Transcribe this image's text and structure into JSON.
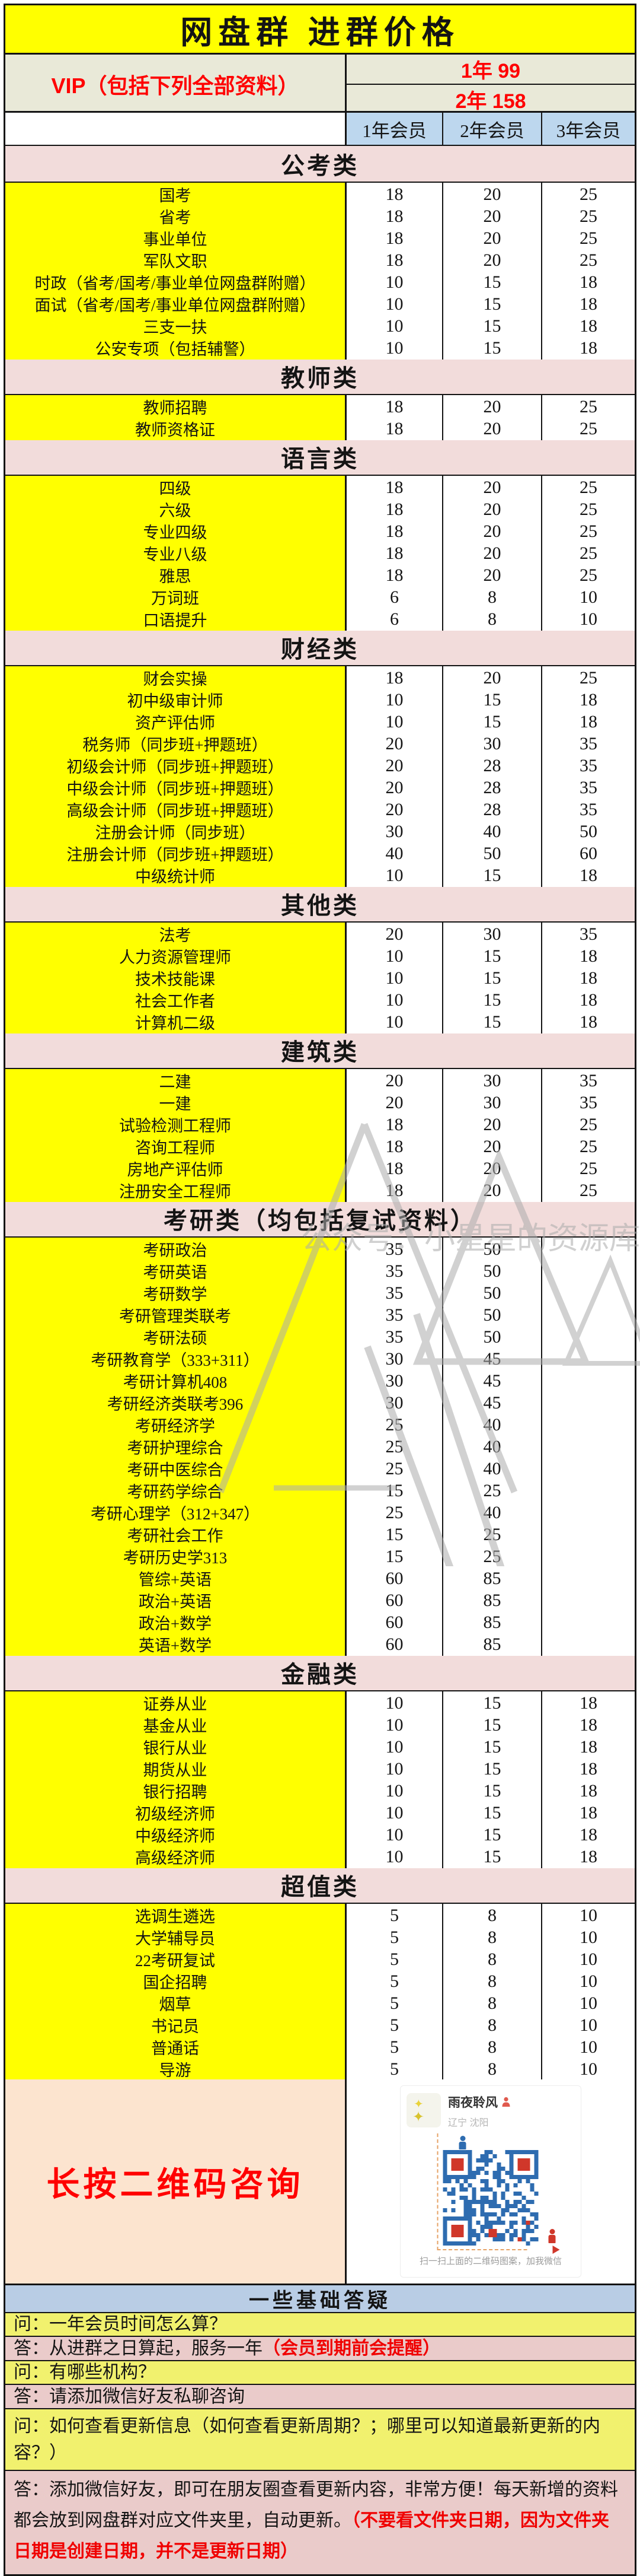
{
  "title": "网盘群 进群价格",
  "vip": {
    "label": "VIP（包括下列全部资料）",
    "price_year1": "1年 99",
    "price_year2": "2年 158"
  },
  "columns": [
    "1年会员",
    "2年会员",
    "3年会员"
  ],
  "sections": [
    {
      "name": "公考类",
      "rows": [
        {
          "label": "国考",
          "p1": "18",
          "p2": "20",
          "p3": "25"
        },
        {
          "label": "省考",
          "p1": "18",
          "p2": "20",
          "p3": "25"
        },
        {
          "label": "事业单位",
          "p1": "18",
          "p2": "20",
          "p3": "25"
        },
        {
          "label": "军队文职",
          "p1": "18",
          "p2": "20",
          "p3": "25"
        },
        {
          "label": "时政（省考/国考/事业单位网盘群附赠）",
          "p1": "10",
          "p2": "15",
          "p3": "18"
        },
        {
          "label": "面试（省考/国考/事业单位网盘群附赠）",
          "p1": "10",
          "p2": "15",
          "p3": "18"
        },
        {
          "label": "三支一扶",
          "p1": "10",
          "p2": "15",
          "p3": "18"
        },
        {
          "label": "公安专项（包括辅警）",
          "p1": "10",
          "p2": "15",
          "p3": "18"
        }
      ]
    },
    {
      "name": "教师类",
      "rows": [
        {
          "label": "教师招聘",
          "p1": "18",
          "p2": "20",
          "p3": "25"
        },
        {
          "label": "教师资格证",
          "p1": "18",
          "p2": "20",
          "p3": "25"
        }
      ]
    },
    {
      "name": "语言类",
      "rows": [
        {
          "label": "四级",
          "p1": "18",
          "p2": "20",
          "p3": "25"
        },
        {
          "label": "六级",
          "p1": "18",
          "p2": "20",
          "p3": "25"
        },
        {
          "label": "专业四级",
          "p1": "18",
          "p2": "20",
          "p3": "25"
        },
        {
          "label": "专业八级",
          "p1": "18",
          "p2": "20",
          "p3": "25"
        },
        {
          "label": "雅思",
          "p1": "18",
          "p2": "20",
          "p3": "25"
        },
        {
          "label": "万词班",
          "p1": "6",
          "p2": "8",
          "p3": "10"
        },
        {
          "label": "口语提升",
          "p1": "6",
          "p2": "8",
          "p3": "10"
        }
      ]
    },
    {
      "name": "财经类",
      "rows": [
        {
          "label": "财会实操",
          "p1": "18",
          "p2": "20",
          "p3": "25"
        },
        {
          "label": "初中级审计师",
          "p1": "10",
          "p2": "15",
          "p3": "18"
        },
        {
          "label": "资产评估师",
          "p1": "10",
          "p2": "15",
          "p3": "18"
        },
        {
          "label": "税务师（同步班+押题班）",
          "p1": "20",
          "p2": "30",
          "p3": "35"
        },
        {
          "label": "初级会计师（同步班+押题班）",
          "p1": "20",
          "p2": "28",
          "p3": "35"
        },
        {
          "label": "中级会计师（同步班+押题班）",
          "p1": "20",
          "p2": "28",
          "p3": "35"
        },
        {
          "label": "高级会计师（同步班+押题班）",
          "p1": "20",
          "p2": "28",
          "p3": "35"
        },
        {
          "label": "注册会计师（同步班）",
          "p1": "30",
          "p2": "40",
          "p3": "50"
        },
        {
          "label": "注册会计师（同步班+押题班）",
          "p1": "40",
          "p2": "50",
          "p3": "60"
        },
        {
          "label": "中级统计师",
          "p1": "10",
          "p2": "15",
          "p3": "18"
        }
      ]
    },
    {
      "name": "其他类",
      "rows": [
        {
          "label": "法考",
          "p1": "20",
          "p2": "30",
          "p3": "35"
        },
        {
          "label": "人力资源管理师",
          "p1": "10",
          "p2": "15",
          "p3": "18"
        },
        {
          "label": "技术技能课",
          "p1": "10",
          "p2": "15",
          "p3": "18"
        },
        {
          "label": "社会工作者",
          "p1": "10",
          "p2": "15",
          "p3": "18"
        },
        {
          "label": "计算机二级",
          "p1": "10",
          "p2": "15",
          "p3": "18"
        }
      ]
    },
    {
      "name": "建筑类",
      "rows": [
        {
          "label": "二建",
          "p1": "20",
          "p2": "30",
          "p3": "35"
        },
        {
          "label": "一建",
          "p1": "20",
          "p2": "30",
          "p3": "35"
        },
        {
          "label": "试验检测工程师",
          "p1": "18",
          "p2": "20",
          "p3": "25"
        },
        {
          "label": "咨询工程师",
          "p1": "18",
          "p2": "20",
          "p3": "25"
        },
        {
          "label": "房地产评估师",
          "p1": "18",
          "p2": "20",
          "p3": "25"
        },
        {
          "label": "注册安全工程师",
          "p1": "18",
          "p2": "20",
          "p3": "25"
        }
      ]
    },
    {
      "name": "考研类（均包括复试资料）",
      "rows": [
        {
          "label": "考研政治",
          "p1": "35",
          "p2": "50",
          "p3": ""
        },
        {
          "label": "考研英语",
          "p1": "35",
          "p2": "50",
          "p3": ""
        },
        {
          "label": "考研数学",
          "p1": "35",
          "p2": "50",
          "p3": ""
        },
        {
          "label": "考研管理类联考",
          "p1": "35",
          "p2": "50",
          "p3": ""
        },
        {
          "label": "考研法硕",
          "p1": "35",
          "p2": "50",
          "p3": ""
        },
        {
          "label": "考研教育学（333+311）",
          "p1": "30",
          "p2": "45",
          "p3": ""
        },
        {
          "label": "考研计算机408",
          "p1": "30",
          "p2": "45",
          "p3": ""
        },
        {
          "label": "考研经济类联考396",
          "p1": "30",
          "p2": "45",
          "p3": ""
        },
        {
          "label": "考研经济学",
          "p1": "25",
          "p2": "40",
          "p3": ""
        },
        {
          "label": "考研护理综合",
          "p1": "25",
          "p2": "40",
          "p3": ""
        },
        {
          "label": "考研中医综合",
          "p1": "25",
          "p2": "40",
          "p3": ""
        },
        {
          "label": "考研药学综合",
          "p1": "15",
          "p2": "25",
          "p3": ""
        },
        {
          "label": "考研心理学（312+347）",
          "p1": "25",
          "p2": "40",
          "p3": ""
        },
        {
          "label": "考研社会工作",
          "p1": "15",
          "p2": "25",
          "p3": ""
        },
        {
          "label": "考研历史学313",
          "p1": "15",
          "p2": "25",
          "p3": ""
        },
        {
          "label": "管综+英语",
          "p1": "60",
          "p2": "85",
          "p3": ""
        },
        {
          "label": "政治+英语",
          "p1": "60",
          "p2": "85",
          "p3": ""
        },
        {
          "label": "政治+数学",
          "p1": "60",
          "p2": "85",
          "p3": ""
        },
        {
          "label": "英语+数学",
          "p1": "60",
          "p2": "85",
          "p3": ""
        }
      ]
    },
    {
      "name": "金融类",
      "rows": [
        {
          "label": "证券从业",
          "p1": "10",
          "p2": "15",
          "p3": "18"
        },
        {
          "label": "基金从业",
          "p1": "10",
          "p2": "15",
          "p3": "18"
        },
        {
          "label": "银行从业",
          "p1": "10",
          "p2": "15",
          "p3": "18"
        },
        {
          "label": "期货从业",
          "p1": "10",
          "p2": "15",
          "p3": "18"
        },
        {
          "label": "银行招聘",
          "p1": "10",
          "p2": "15",
          "p3": "18"
        },
        {
          "label": "初级经济师",
          "p1": "10",
          "p2": "15",
          "p3": "18"
        },
        {
          "label": "中级经济师",
          "p1": "10",
          "p2": "15",
          "p3": "18"
        },
        {
          "label": "高级经济师",
          "p1": "10",
          "p2": "15",
          "p3": "18"
        }
      ]
    },
    {
      "name": "超值类",
      "rows": [
        {
          "label": "选调生遴选",
          "p1": "5",
          "p2": "8",
          "p3": "10"
        },
        {
          "label": "大学辅导员",
          "p1": "5",
          "p2": "8",
          "p3": "10"
        },
        {
          "label": "22考研复试",
          "p1": "5",
          "p2": "8",
          "p3": "10"
        },
        {
          "label": "国企招聘",
          "p1": "5",
          "p2": "8",
          "p3": "10"
        },
        {
          "label": "烟草",
          "p1": "5",
          "p2": "8",
          "p3": "10"
        },
        {
          "label": "书记员",
          "p1": "5",
          "p2": "8",
          "p3": "10"
        },
        {
          "label": "普通话",
          "p1": "5",
          "p2": "8",
          "p3": "10"
        },
        {
          "label": "导游",
          "p1": "5",
          "p2": "8",
          "p3": "10"
        }
      ]
    }
  ],
  "qr": {
    "cta": "长按二维码咨询",
    "contact_name": "雨夜聆风",
    "contact_location": "辽宁 沈阳",
    "caption": "扫一扫上面的二维码图案，加我微信"
  },
  "watermark": {
    "text": "公众号：小星星的资源库"
  },
  "faq": {
    "header": "一些基础答疑",
    "q1": "问：一年会员时间怎么算？",
    "a1_prefix": "答：从进群之日算起，服务一年",
    "a1_red": "（会员到期前会提醒）",
    "q2": "问：有哪些机构？",
    "a2": "答：请添加微信好友私聊咨询",
    "q3": "问：如何查看更新信息（如何查看更新周期？；哪里可以知道最新更新的内容？）",
    "a3_prefix": "答：添加微信好友，即可在朋友圈查看更新内容，非常方便！每天新增的资料都会放到网盘群对应文件夹里，自动更新。",
    "a3_red": "（不要看文件夹日期，因为文件夹日期是创建日期，并不是更新日期）"
  },
  "colors": {
    "banner_bg": "#FFFF00",
    "item_bg": "#FFFF00",
    "vip_bg": "#E9E9D8",
    "column_header_bg": "#BDD7EE",
    "category_bg": "#F2DCDB",
    "qr_left_bg": "#FCE4CF",
    "faq_header_bg": "#B9CDE5",
    "faq_question_bg": "#F1F16E",
    "faq_answer_bg": "#EACBCA",
    "accent_red": "#FF0000",
    "qr_blue": "#2E6CB0",
    "qr_red": "#D0372A",
    "border": "#141414"
  }
}
